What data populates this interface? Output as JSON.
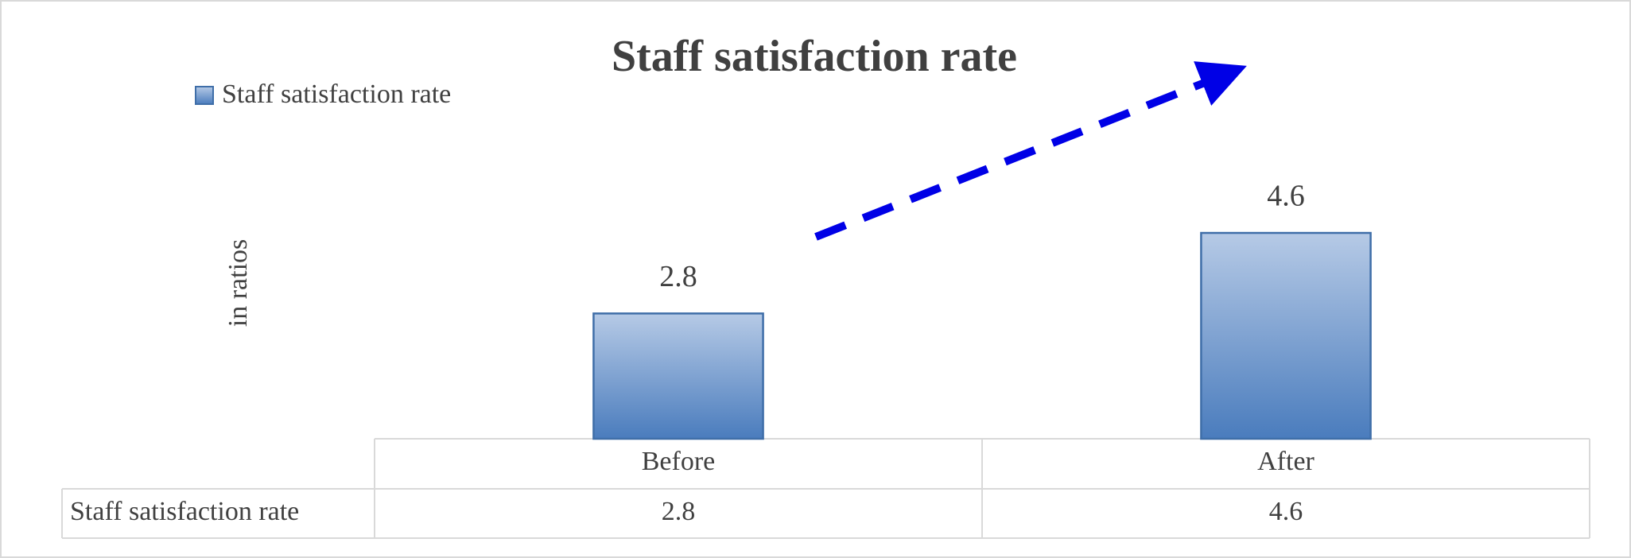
{
  "chart_data": {
    "type": "bar",
    "title": "Staff satisfaction rate",
    "y_label": "in ratios",
    "categories": [
      "Before",
      "After"
    ],
    "series": [
      {
        "name": "Staff satisfaction rate",
        "color": "#4f81bd",
        "values": [
          2.8,
          4.6
        ]
      }
    ],
    "ylim": [
      0,
      5
    ],
    "legend": "top-left",
    "data_table": true
  }
}
